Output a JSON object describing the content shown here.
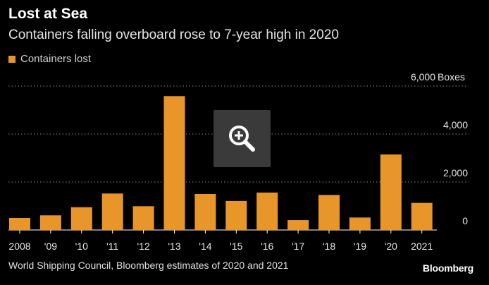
{
  "title": "Lost at Sea",
  "subtitle": "Containers falling overboard rose to 7-year high in 2020",
  "legend": "Containers lost",
  "source": "World Shipping Council, Bloomberg estimates of 2020 and 2021",
  "brand": "Bloomberg",
  "zoom_icon": "magnifier-plus-icon",
  "colors": {
    "bar": "#e8952a",
    "background": "#000000",
    "grid": "#8a8a8a",
    "zoom_bg": "#3a3a3a"
  },
  "chart_data": {
    "type": "bar",
    "categories": [
      "2008",
      "'09",
      "'10",
      "'11",
      "'12",
      "'13",
      "'14",
      "'15",
      "'16",
      "'17",
      "'18",
      "'19",
      "'20",
      "2021"
    ],
    "series": [
      {
        "name": "Containers lost",
        "values": [
          500,
          610,
          950,
          1520,
          990,
          5580,
          1500,
          1210,
          1560,
          410,
          1460,
          520,
          3150,
          1130
        ]
      }
    ],
    "ylim": [
      0,
      6000
    ],
    "yticks": [
      {
        "value": 6000,
        "label": "6,000"
      },
      {
        "value": 4000,
        "label": "4,000"
      },
      {
        "value": 2000,
        "label": "2,000"
      },
      {
        "value": 0,
        "label": "0"
      }
    ],
    "yunit": "Boxes",
    "grid": "dotted horizontal",
    "legend_position": "top-left"
  }
}
